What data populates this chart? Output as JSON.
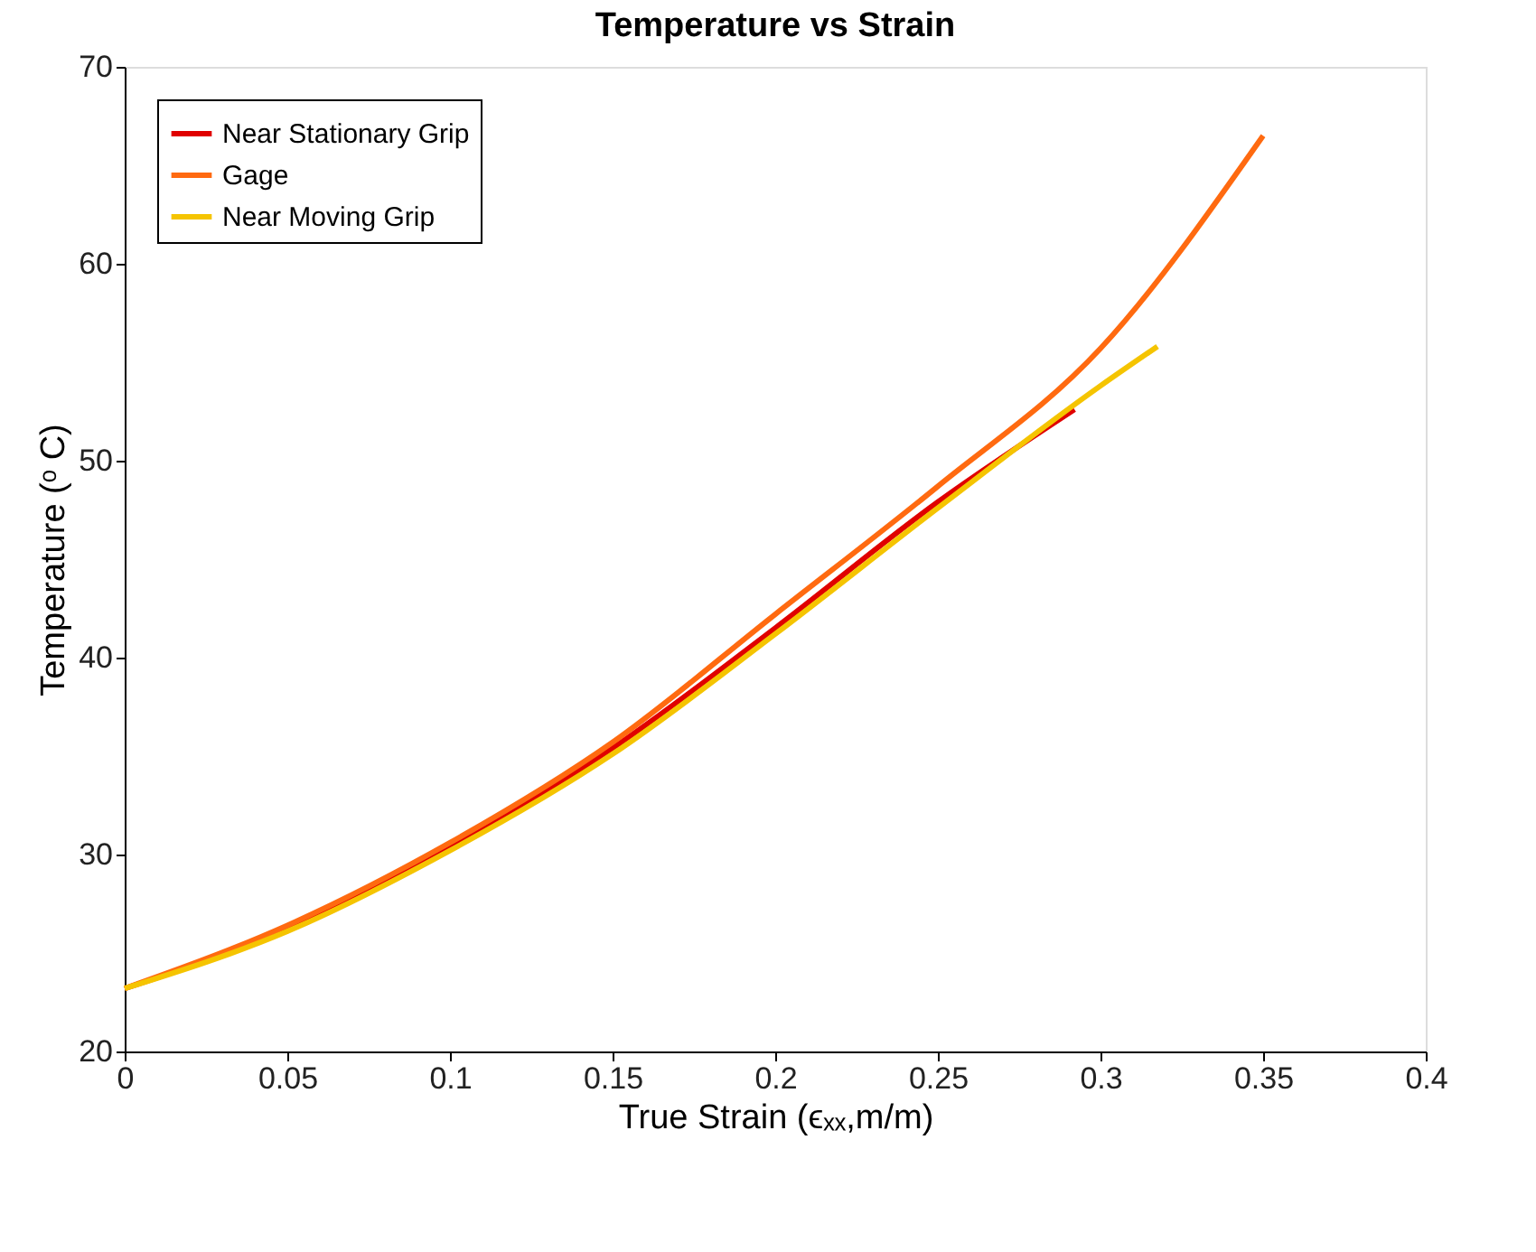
{
  "chart_data": {
    "type": "line",
    "title": "Temperature vs Strain",
    "xlabel": "True Strain (ϵₓₓ,m/m)",
    "ylabel": "Temperature (ᵒ C)",
    "xlim": [
      0,
      0.4
    ],
    "xticks": [
      0,
      0.05,
      0.1,
      0.15,
      0.2,
      0.25,
      0.3,
      0.35,
      0.4
    ],
    "ylim": [
      20,
      70
    ],
    "yticks": [
      20,
      30,
      40,
      50,
      60,
      70
    ],
    "grid": false,
    "legend": "top left",
    "marker": "none",
    "line_style": "solid",
    "series": [
      {
        "name": "Near Stationary Grip",
        "color": "#e00000",
        "x": [
          0,
          0.05,
          0.1,
          0.15,
          0.2,
          0.25,
          0.292
        ],
        "values": [
          23.2,
          26.2,
          30.4,
          35.4,
          41.5,
          47.9,
          52.6
        ]
      },
      {
        "name": "Gage",
        "color": "#ff6a10",
        "x": [
          0,
          0.05,
          0.1,
          0.15,
          0.2,
          0.25,
          0.3,
          0.35
        ],
        "values": [
          23.2,
          26.4,
          30.6,
          35.7,
          42.2,
          48.7,
          55.7,
          66.5
        ]
      },
      {
        "name": "Near Moving Grip",
        "color": "#f5c400",
        "x": [
          0,
          0.05,
          0.1,
          0.15,
          0.2,
          0.25,
          0.3,
          0.3175
        ],
        "values": [
          23.2,
          26.1,
          30.2,
          35.1,
          41.2,
          47.6,
          53.8,
          55.8
        ]
      }
    ]
  }
}
